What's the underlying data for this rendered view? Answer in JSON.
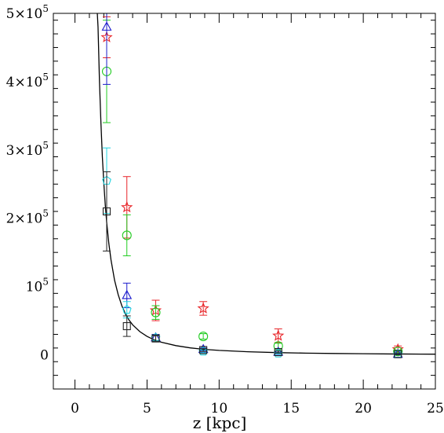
{
  "chart_data": {
    "type": "scatter",
    "title": "",
    "xlabel": "z [kpc]",
    "ylabel": "",
    "xlim": [
      -1.5,
      25
    ],
    "ylim": [
      -50000,
      500000
    ],
    "x_ticks": [
      0,
      5,
      10,
      15,
      20,
      25
    ],
    "x_tick_labels": [
      "0",
      "5",
      "10",
      "15",
      "20",
      "25"
    ],
    "y_ticks": [
      0,
      100000,
      200000,
      300000,
      400000,
      500000
    ],
    "y_tick_labels": [
      {
        "value": 0,
        "mantissa": "0",
        "base": "",
        "exp": ""
      },
      {
        "value": 100000,
        "mantissa": "",
        "base": "10",
        "exp": "5"
      },
      {
        "value": 200000,
        "mantissa": "2×",
        "base": "10",
        "exp": "5"
      },
      {
        "value": 300000,
        "mantissa": "3×",
        "base": "10",
        "exp": "5"
      },
      {
        "value": 400000,
        "mantissa": "4×",
        "base": "10",
        "exp": "5"
      },
      {
        "value": 500000,
        "mantissa": "5×",
        "base": "10",
        "exp": "5"
      }
    ],
    "grid": false,
    "series": [
      {
        "marker": "star",
        "color": "#e8262a",
        "points": [
          {
            "x": 2.2,
            "y": 465000,
            "err": 30000
          },
          {
            "x": 3.6,
            "y": 216000,
            "err": 45000
          },
          {
            "x": 5.6,
            "y": 65000,
            "err": 15000
          },
          {
            "x": 8.9,
            "y": 68000,
            "err": 10000
          },
          {
            "x": 14.1,
            "y": 28000,
            "err": 10000
          },
          {
            "x": 22.4,
            "y": 8000,
            "err": 5000
          }
        ]
      },
      {
        "marker": "circle",
        "color": "#22cc22",
        "points": [
          {
            "x": 2.2,
            "y": 415000,
            "err": 75000
          },
          {
            "x": 3.6,
            "y": 175000,
            "err": 30000
          },
          {
            "x": 5.6,
            "y": 62000,
            "err": 10000
          },
          {
            "x": 8.9,
            "y": 27000,
            "err": 4000
          },
          {
            "x": 14.1,
            "y": 13000,
            "err": 4000
          },
          {
            "x": 22.4,
            "y": 5000,
            "err": 2000
          }
        ]
      },
      {
        "marker": "triangle",
        "color": "#1c1ccc",
        "points": [
          {
            "x": 2.2,
            "y": 480000,
            "err": 84000
          },
          {
            "x": 3.6,
            "y": 87000,
            "err": 18000
          },
          {
            "x": 5.6,
            "y": 25000,
            "err": 5000
          },
          {
            "x": 8.9,
            "y": 8000,
            "err": 2000
          },
          {
            "x": 14.1,
            "y": 4000,
            "err": 1500
          },
          {
            "x": 22.4,
            "y": 1000,
            "err": 1000
          }
        ]
      },
      {
        "marker": "pentagon",
        "color": "#22d4e0",
        "points": [
          {
            "x": 2.2,
            "y": 255000,
            "err": 48000
          },
          {
            "x": 3.6,
            "y": 66000,
            "err": 12000
          },
          {
            "x": 5.6,
            "y": 25000,
            "err": 4000
          },
          {
            "x": 8.9,
            "y": 5000,
            "err": 2000
          },
          {
            "x": 14.1,
            "y": 2000,
            "err": 1000
          },
          {
            "x": 22.4,
            "y": 1000,
            "err": 1000
          }
        ]
      },
      {
        "marker": "square",
        "color": "#222222",
        "points": [
          {
            "x": 2.2,
            "y": 210000,
            "err": 58000
          },
          {
            "x": 3.6,
            "y": 42000,
            "err": 15000
          },
          {
            "x": 5.6,
            "y": 24000,
            "err": 4000
          },
          {
            "x": 8.9,
            "y": 7000,
            "err": 2000
          },
          {
            "x": 14.1,
            "y": 4000,
            "err": 1500
          },
          {
            "x": 22.4,
            "y": 1000,
            "err": 1000
          }
        ]
      }
    ],
    "fit_curve": {
      "color": "#000000",
      "x": [
        1.55,
        1.6,
        1.7,
        1.8,
        1.9,
        2.0,
        2.1,
        2.2,
        2.35,
        2.5,
        2.75,
        3.0,
        3.25,
        3.5,
        3.75,
        4.0,
        4.5,
        5.0,
        5.5,
        6.0,
        7.0,
        8.0,
        9.0,
        10.0,
        12.0,
        14.0,
        16.0,
        18.0,
        20.0,
        22.0,
        24.0,
        25.0
      ],
      "y": [
        500000,
        480000,
        400000,
        340000,
        290000,
        252000,
        220000,
        194000,
        163000,
        139000,
        109000,
        88000,
        72000,
        60000,
        51000,
        44000,
        34000,
        27000,
        22000,
        18500,
        13500,
        10200,
        8000,
        6500,
        4500,
        3300,
        2500,
        2000,
        1600,
        1300,
        1100,
        1000
      ]
    }
  }
}
